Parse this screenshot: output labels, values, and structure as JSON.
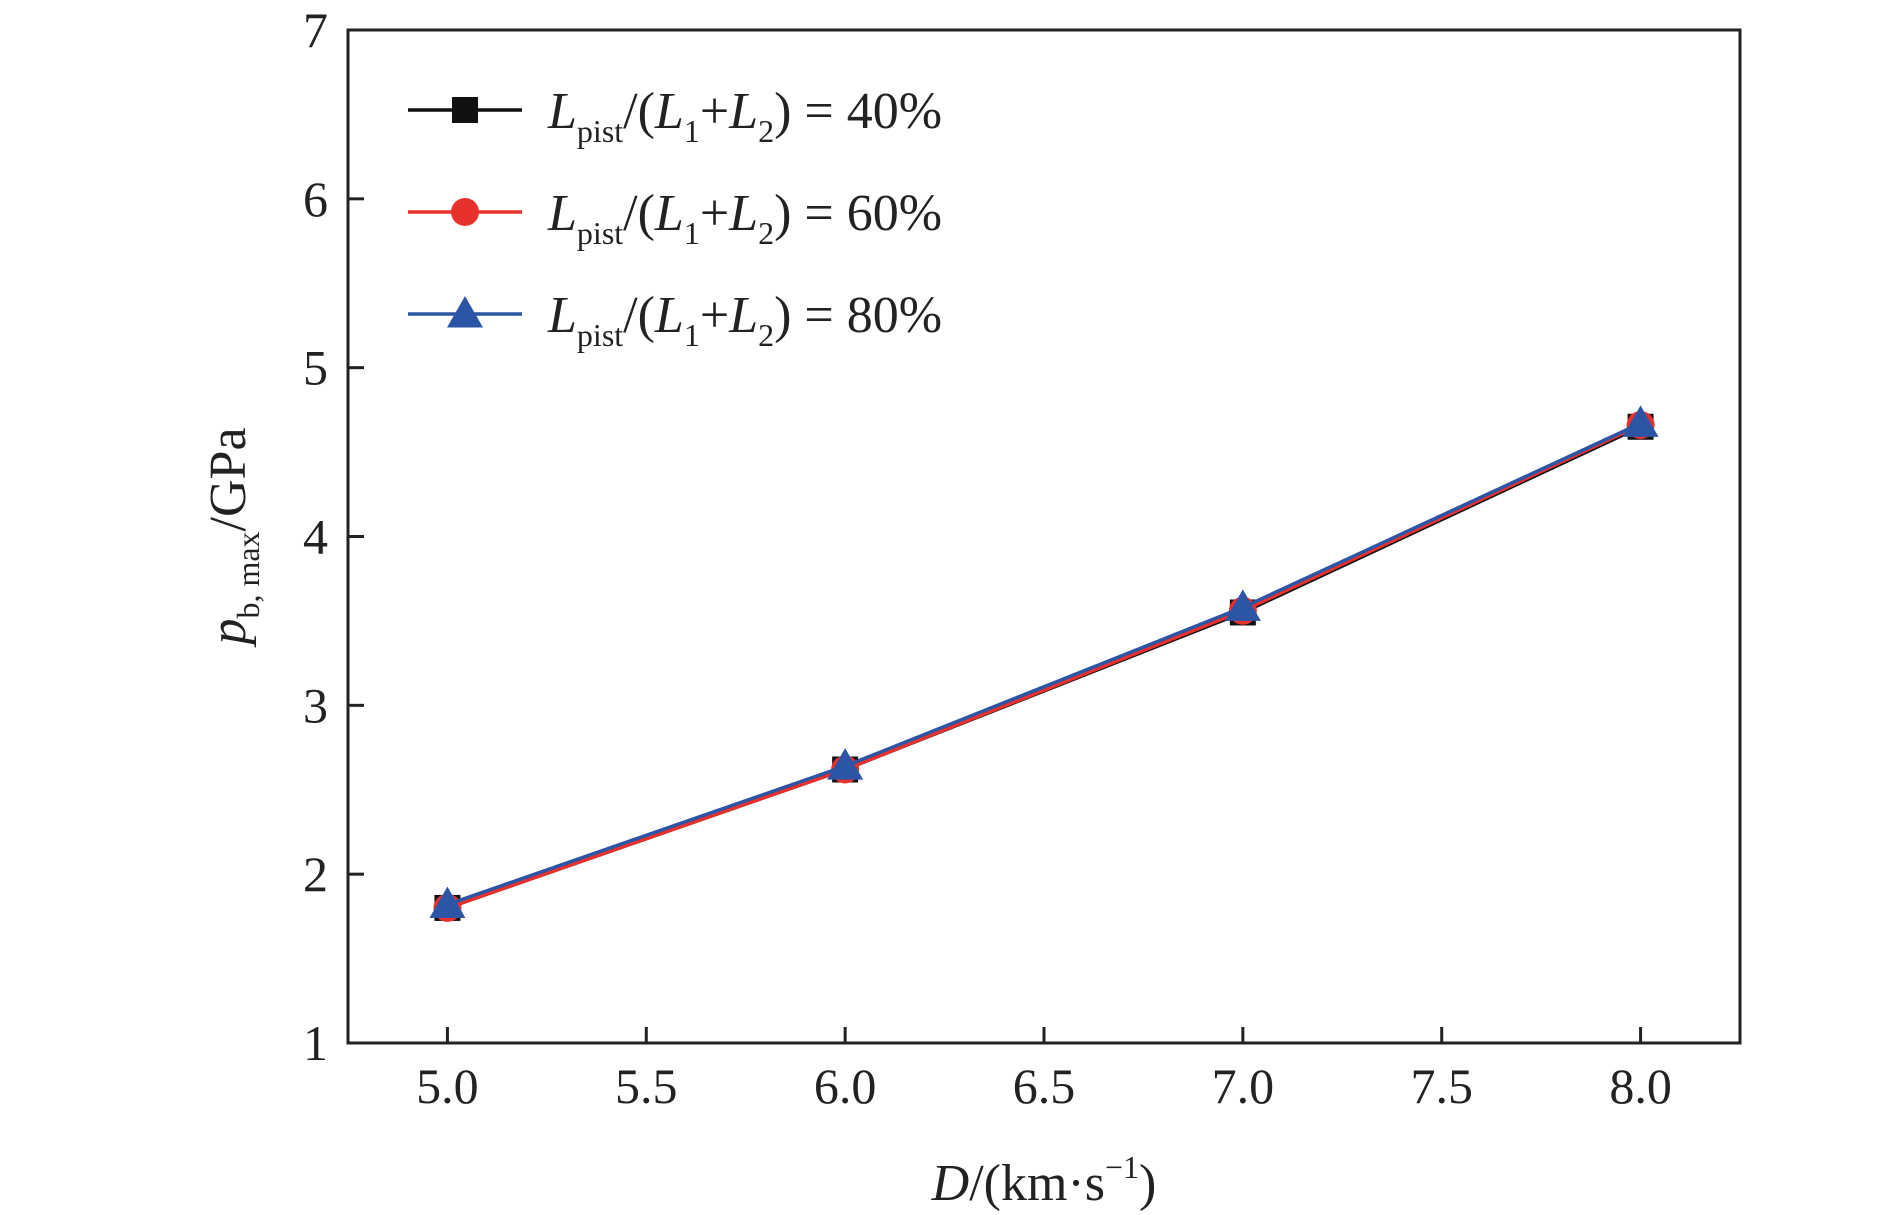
{
  "chart_data": {
    "type": "line",
    "x_ticks": [
      "5.0",
      "5.5",
      "6.0",
      "6.5",
      "7.0",
      "7.5",
      "8.0"
    ],
    "x_tick_values": [
      5.0,
      5.5,
      6.0,
      6.5,
      7.0,
      7.5,
      8.0
    ],
    "y_ticks": [
      "1",
      "2",
      "3",
      "4",
      "5",
      "6",
      "7"
    ],
    "y_tick_values": [
      1,
      2,
      3,
      4,
      5,
      6,
      7
    ],
    "xlim": [
      4.75,
      8.25
    ],
    "ylim": [
      1,
      7
    ],
    "grid": false,
    "legend_position": "top-left",
    "xlabel": {
      "main": "D",
      "rest": "/(km·s",
      "sup": "−1",
      "close": ")"
    },
    "ylabel": {
      "main": "p",
      "sub": "b, max",
      "rest": "/GPa"
    },
    "series": [
      {
        "legend": {
          "L": "L",
          "sub_pist": "pist",
          "open": "/(",
          "L1": "L",
          "sub1": "1",
          "plus": "+",
          "L2": "L",
          "sub2": "2",
          "close": ") = 40%"
        },
        "color": "#111111",
        "marker": "square",
        "x": [
          5.0,
          6.0,
          7.0,
          8.0
        ],
        "y": [
          1.8,
          2.62,
          3.55,
          4.65
        ]
      },
      {
        "legend": {
          "L": "L",
          "sub_pist": "pist",
          "open": "/(",
          "L1": "L",
          "sub1": "1",
          "plus": "+",
          "L2": "L",
          "sub2": "2",
          "close": ") = 60%"
        },
        "color": "#e8302c",
        "marker": "circle",
        "x": [
          5.0,
          6.0,
          7.0,
          8.0
        ],
        "y": [
          1.8,
          2.62,
          3.56,
          4.66
        ]
      },
      {
        "legend": {
          "L": "L",
          "sub_pist": "pist",
          "open": "/(",
          "L1": "L",
          "sub1": "1",
          "plus": "+",
          "L2": "L",
          "sub2": "2",
          "close": ") = 80%"
        },
        "color": "#2d55a6",
        "marker": "triangle",
        "x": [
          5.0,
          6.0,
          7.0,
          8.0
        ],
        "y": [
          1.82,
          2.64,
          3.58,
          4.67
        ]
      }
    ]
  }
}
